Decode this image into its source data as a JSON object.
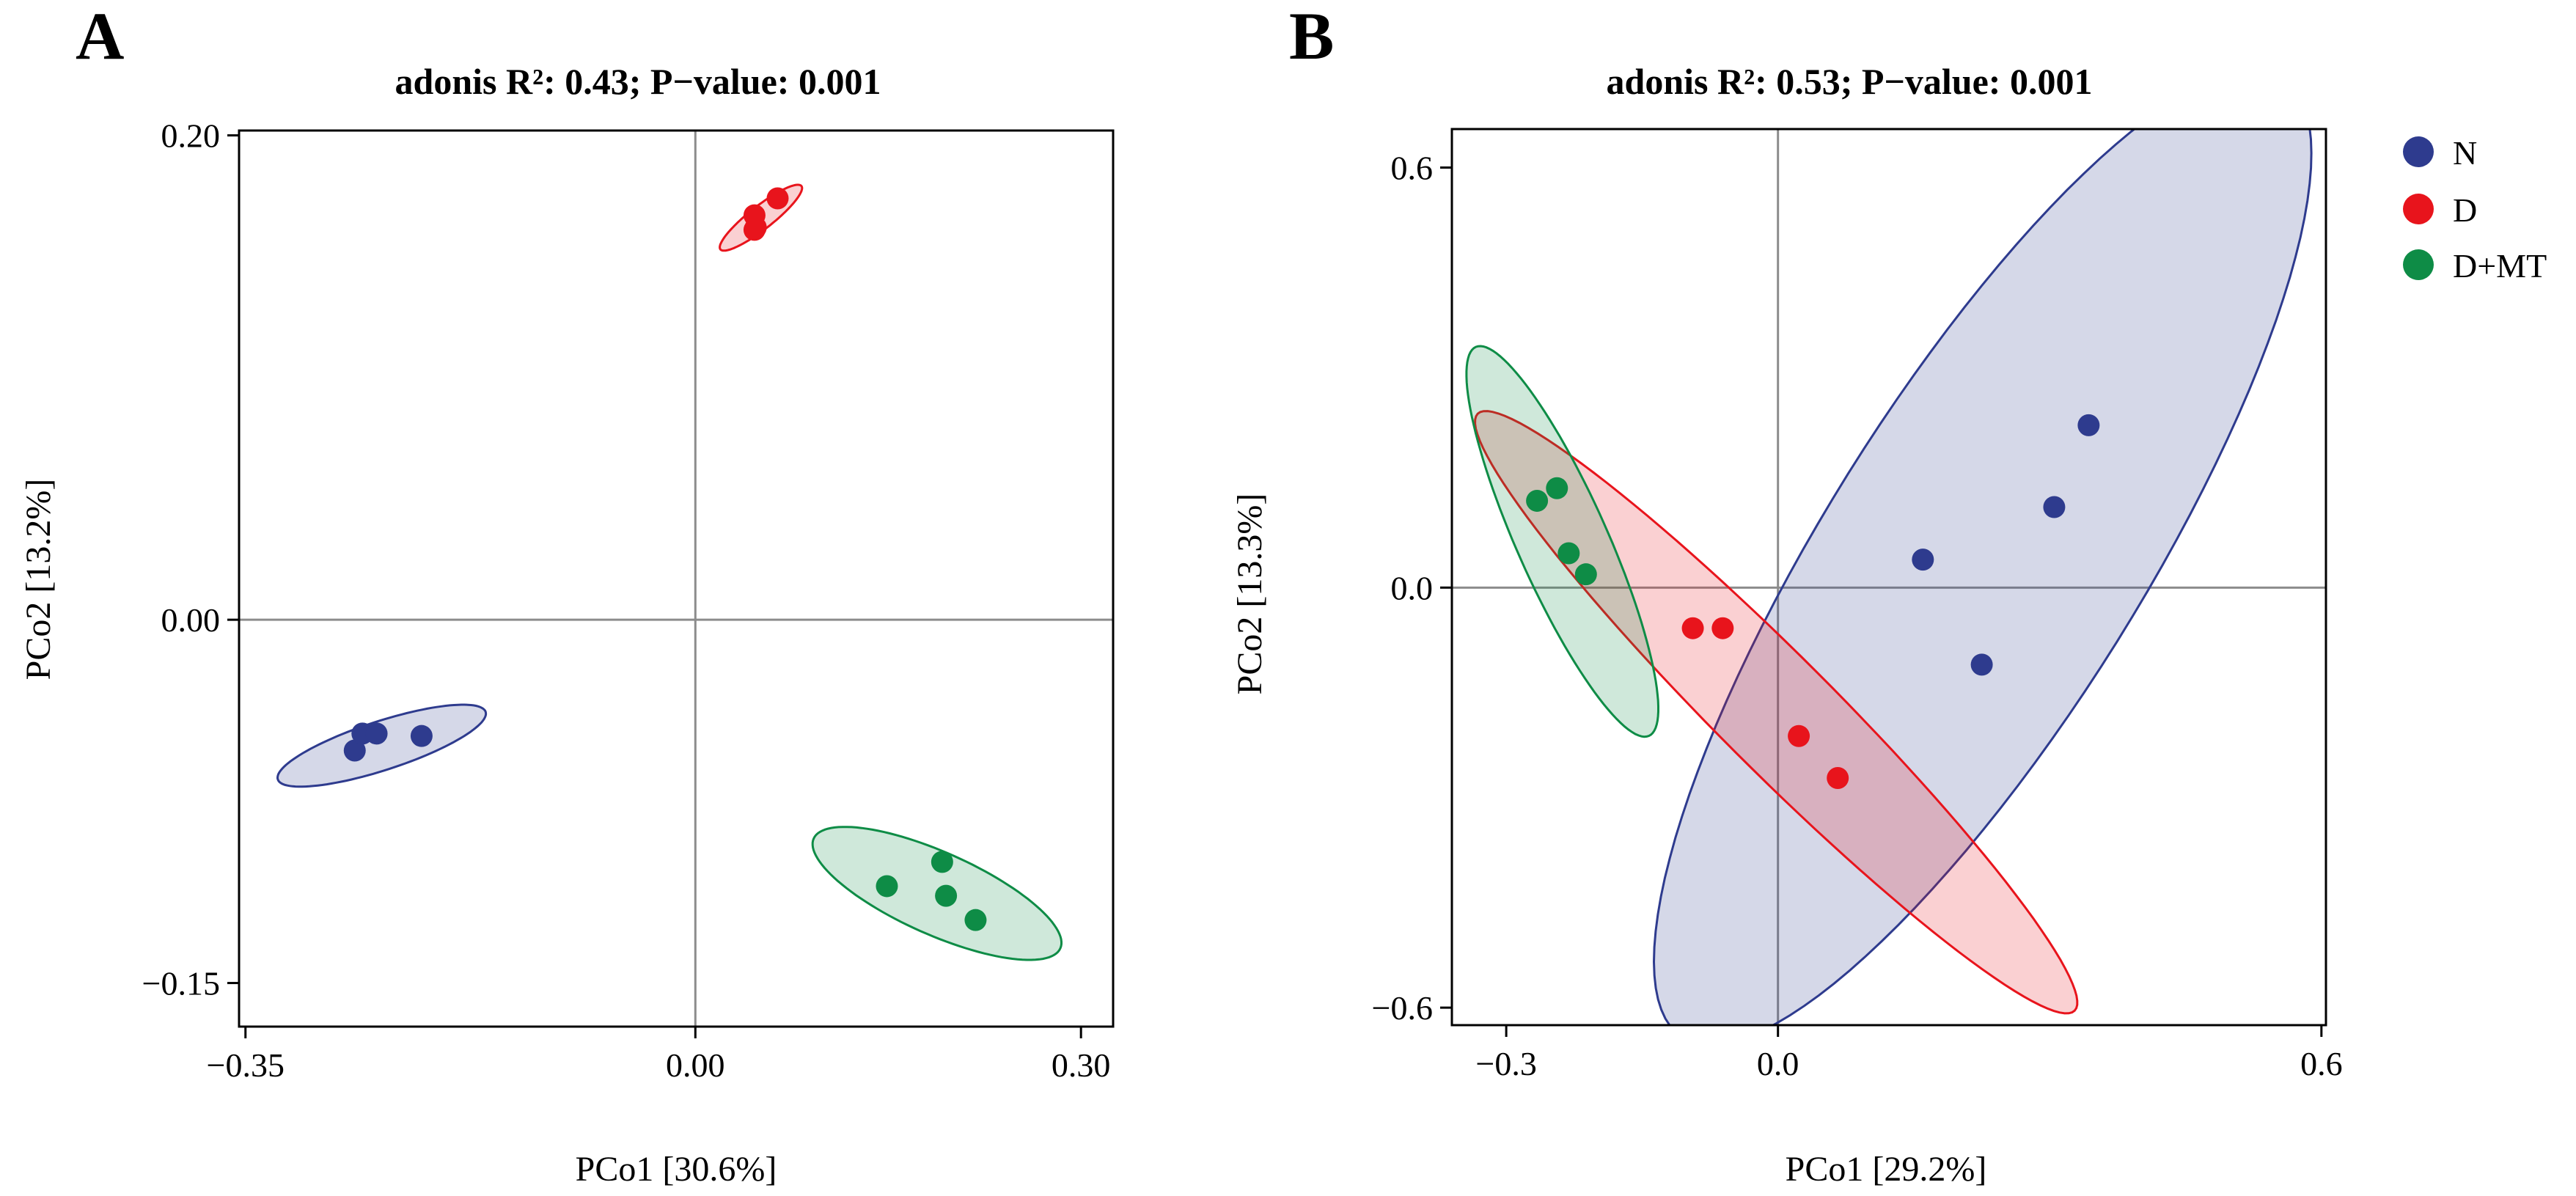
{
  "chart_data": [
    {
      "type": "scatter",
      "panel": "A",
      "title": "adonis R²: 0.43; P−value: 0.001",
      "xlabel": "PCo1 [30.6%]",
      "ylabel": "PCo2 [13.2%]",
      "xlim": [
        -0.355,
        0.325
      ],
      "ylim": [
        -0.168,
        0.202
      ],
      "xticks": [
        -0.35,
        0.0,
        0.3
      ],
      "xtick_labels": [
        "−0.35",
        "0.00",
        "0.30"
      ],
      "yticks": [
        -0.15,
        0.0,
        0.2
      ],
      "ytick_labels": [
        "−0.15",
        "0.00",
        "0.20"
      ],
      "reference_lines": {
        "x": 0,
        "y": 0
      },
      "series": [
        {
          "name": "N",
          "color": "#2E3B8E",
          "points": [
            [
              -0.265,
              -0.054
            ],
            [
              -0.259,
              -0.047
            ],
            [
              -0.248,
              -0.047
            ],
            [
              -0.213,
              -0.048
            ]
          ],
          "ellipse": {
            "cx": -0.244,
            "cy": -0.052,
            "rx": 0.085,
            "ry": 0.019,
            "angle_deg": 18
          }
        },
        {
          "name": "D",
          "color": "#E8141C",
          "points": [
            [
              0.046,
              0.167
            ],
            [
              0.064,
              0.174
            ],
            [
              0.046,
              0.161
            ],
            [
              0.047,
              0.162
            ]
          ],
          "ellipse": {
            "cx": 0.051,
            "cy": 0.166,
            "rx": 0.04,
            "ry": 0.009,
            "angle_deg": 38
          }
        },
        {
          "name": "D+MT",
          "color": "#0E8C46",
          "points": [
            [
              0.149,
              -0.11
            ],
            [
              0.192,
              -0.1
            ],
            [
              0.195,
              -0.114
            ],
            [
              0.218,
              -0.124
            ]
          ],
          "ellipse": {
            "cx": 0.188,
            "cy": -0.113,
            "rx": 0.105,
            "ry": 0.032,
            "angle_deg": -24
          }
        }
      ]
    },
    {
      "type": "scatter",
      "panel": "B",
      "title": "adonis R²: 0.53; P−value: 0.001",
      "xlabel": "PCo1 [29.2%]",
      "ylabel": "PCo2 [13.3%]",
      "xlim": [
        -0.36,
        0.605
      ],
      "ylim": [
        -0.625,
        0.655
      ],
      "xticks": [
        -0.3,
        0.0,
        0.6
      ],
      "xtick_labels": [
        "−0.3",
        "0.0",
        "0.6"
      ],
      "yticks": [
        -0.6,
        0.0,
        0.6
      ],
      "ytick_labels": [
        "−0.6",
        "0.0",
        "0.6"
      ],
      "reference_lines": {
        "x": 0,
        "y": 0
      },
      "series": [
        {
          "name": "N",
          "color": "#2E3B8E",
          "points": [
            [
              0.16,
              0.04
            ],
            [
              0.225,
              -0.11
            ],
            [
              0.305,
              0.115
            ],
            [
              0.343,
              0.232
            ]
          ],
          "ellipse": {
            "cx": 0.226,
            "cy": 0.043,
            "rx": 0.625,
            "ry": 0.175,
            "angle_deg": 58
          }
        },
        {
          "name": "D",
          "color": "#E8141C",
          "points": [
            [
              -0.094,
              -0.058
            ],
            [
              -0.061,
              -0.058
            ],
            [
              0.023,
              -0.212
            ],
            [
              0.066,
              -0.272
            ]
          ],
          "ellipse": {
            "cx": -0.002,
            "cy": -0.178,
            "rx": 0.466,
            "ry": 0.063,
            "angle_deg": -45
          }
        },
        {
          "name": "D+MT",
          "color": "#0E8C46",
          "points": [
            [
              -0.266,
              0.124
            ],
            [
              -0.244,
              0.142
            ],
            [
              -0.231,
              0.049
            ],
            [
              -0.212,
              0.019
            ]
          ],
          "ellipse": {
            "cx": -0.238,
            "cy": 0.066,
            "rx": 0.235,
            "ry": 0.05,
            "angle_deg": -66
          }
        }
      ]
    }
  ],
  "legend": {
    "position": "top-right",
    "items": [
      {
        "label": "N",
        "color": "#2E3B8E"
      },
      {
        "label": "D",
        "color": "#E8141C"
      },
      {
        "label": "D+MT",
        "color": "#0E8C46"
      }
    ]
  }
}
